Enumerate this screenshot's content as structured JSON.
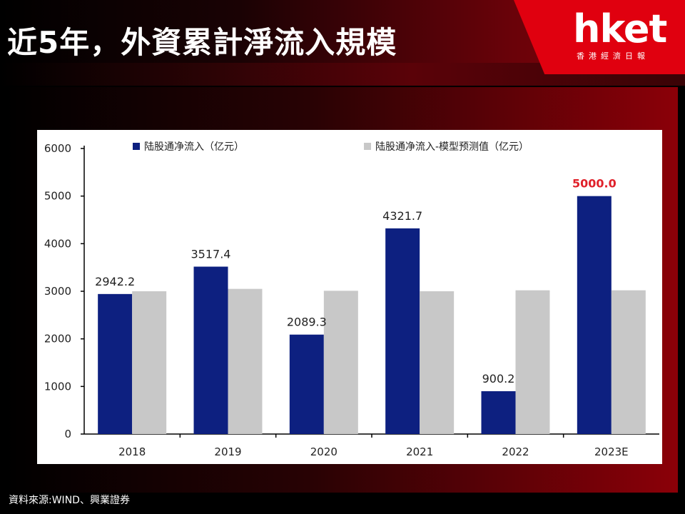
{
  "header": {
    "title": "近5年，外資累計淨流入規模",
    "logo_text": "hket",
    "logo_sub": "香港經濟日報"
  },
  "source": "資料來源:WIND、興業證券",
  "colors": {
    "actual": "#0d2080",
    "model": "#c8c8c8",
    "highlight": "#e0212a"
  },
  "chart_data": {
    "type": "bar",
    "categories": [
      "2018",
      "2019",
      "2020",
      "2021",
      "2022",
      "2023E"
    ],
    "series": [
      {
        "name": "陆股通净流入（亿元）",
        "values": [
          2942.2,
          3517.4,
          2089.3,
          4321.7,
          900.2,
          5000.0
        ]
      },
      {
        "name": "陆股通净流入-模型预测值（亿元）",
        "values": [
          3000,
          3050,
          3010,
          3000,
          3020,
          3020
        ]
      }
    ],
    "data_labels": [
      "2942.2",
      "3517.4",
      "2089.3",
      "4321.7",
      "900.2",
      "5000.0"
    ],
    "y_ticks": [
      0,
      1000,
      2000,
      3000,
      4000,
      5000,
      6000
    ],
    "ylim": [
      0,
      6000
    ],
    "legend_position": "top",
    "grid": false
  }
}
